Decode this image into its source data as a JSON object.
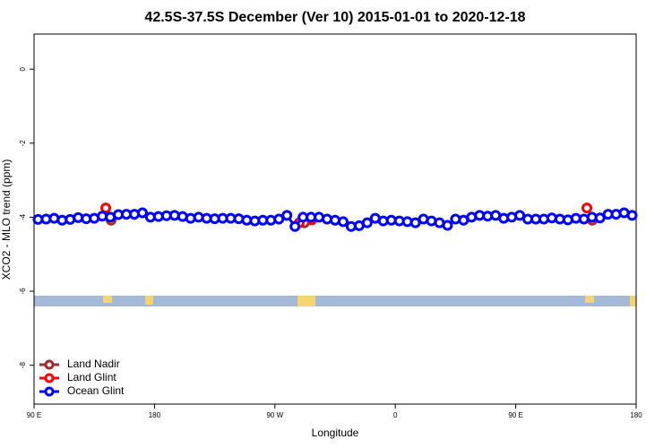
{
  "chart_data": {
    "type": "line",
    "title": "42.5S-37.5S December (Ver 10)   2015-01-01 to 2020-12-18",
    "x_label": "Longitude",
    "y_label": "XCO2 - MLO trend (ppm)",
    "xlim": [
      90,
      540
    ],
    "ylim": [
      -9.05,
      0.95
    ],
    "xticks": [
      {
        "value": 90,
        "label": "90 E"
      },
      180,
      {
        "value": 270,
        "label": "90 W"
      },
      {
        "value": 360,
        "label": "0"
      },
      {
        "value": 450,
        "label": "90 E"
      },
      {
        "value": 540,
        "label": "180"
      }
    ],
    "yticks": [
      0,
      -2,
      -4,
      -6,
      -8
    ],
    "legend": "bottom-left",
    "series": [
      {
        "name": "Land Nadir",
        "color": "#a52a2a",
        "x": [
          147.6,
          292,
          507.2
        ],
        "values": [
          -4.08,
          -4.15,
          -4.08
        ]
      },
      {
        "name": "Land Glint",
        "color": "#ff0000",
        "x": [
          143.6,
          288.2,
          297.6,
          503.2
        ],
        "values": [
          -3.75,
          -4.15,
          -4.07,
          -3.75
        ]
      },
      {
        "name": "Ocean Glint",
        "color": "#0000ff",
        "x": [
          93,
          99,
          105,
          111,
          117,
          123,
          129,
          135,
          141,
          147,
          153,
          159,
          165,
          171,
          177,
          183,
          189,
          195,
          201,
          207,
          213,
          219,
          225,
          231,
          237,
          243,
          249,
          255,
          261,
          267,
          273,
          279,
          285,
          291,
          297,
          303,
          309,
          315,
          321,
          327,
          333,
          339,
          345,
          351,
          357,
          363,
          369,
          375,
          381,
          387,
          393,
          399,
          405,
          411,
          417,
          423,
          429,
          435,
          441,
          447,
          453,
          459,
          465,
          471,
          477,
          483,
          489,
          495,
          501,
          507,
          513,
          519,
          525,
          531,
          537
        ],
        "values": [
          -4.06,
          -4.05,
          -4.03,
          -4.08,
          -4.06,
          -4.01,
          -4.04,
          -4.03,
          -3.97,
          -4.0,
          -3.93,
          -3.92,
          -3.92,
          -3.88,
          -4.0,
          -3.98,
          -3.96,
          -3.95,
          -3.98,
          -4.03,
          -4.0,
          -4.03,
          -4.04,
          -4.03,
          -4.03,
          -4.04,
          -4.08,
          -4.1,
          -4.08,
          -4.08,
          -4.05,
          -3.95,
          -4.25,
          -4.0,
          -4.0,
          -4.0,
          -4.05,
          -4.08,
          -4.12,
          -4.25,
          -4.23,
          -4.15,
          -4.03,
          -4.1,
          -4.08,
          -4.1,
          -4.12,
          -4.15,
          -4.05,
          -4.1,
          -4.15,
          -4.22,
          -4.05,
          -4.08,
          -4.0,
          -3.95,
          -3.97,
          -3.95,
          -4.03,
          -4.0,
          -3.95,
          -4.05,
          -4.05,
          -4.05,
          -4.02,
          -4.05,
          -4.07,
          -4.03,
          -4.05,
          -4.0,
          -4.02,
          -3.92,
          -3.92,
          -3.88,
          -3.95
        ]
      }
    ]
  }
}
